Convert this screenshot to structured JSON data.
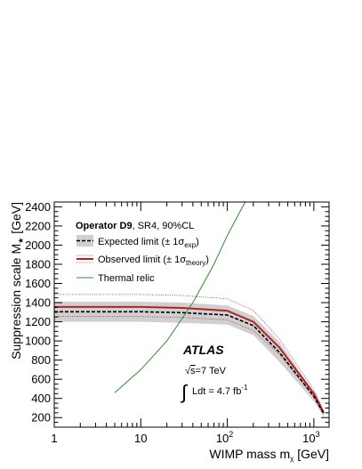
{
  "chart_data": {
    "type": "line",
    "xlabel_main": "WIMP mass m",
    "xlabel_sub": "χ",
    "xlabel_unit": " [GeV]",
    "ylabel_main": "Suppression scale M",
    "ylabel_sub": "★",
    "ylabel_unit": " [GeV]",
    "xscale": "log",
    "xlim": [
      1,
      1500
    ],
    "ylim": [
      100,
      2450
    ],
    "x_ticks": [
      1,
      10,
      100,
      1000
    ],
    "x_tick_labels": [
      {
        "base": "1",
        "exp": ""
      },
      {
        "base": "10",
        "exp": ""
      },
      {
        "base": "10",
        "exp": "2"
      },
      {
        "base": "10",
        "exp": "3"
      }
    ],
    "y_ticks": [
      200,
      400,
      600,
      800,
      1000,
      1200,
      1400,
      1600,
      1800,
      2000,
      2200,
      2400
    ],
    "y_tick_labels": [
      "200",
      "400",
      "600",
      "800",
      "1000",
      "1200",
      "1400",
      "1600",
      "1800",
      "2000",
      "2200",
      "2400"
    ],
    "legend": {
      "title_bold": "Operator D9",
      "title_rest": ", SR4, 90%CL",
      "entries": [
        {
          "main": "Expected limit (± 1σ",
          "sub": "exp",
          "end": ")"
        },
        {
          "main": "Observed limit (± 1σ",
          "sub": "theory",
          "end": ")"
        },
        {
          "main": "Thermal relic",
          "sub": "",
          "end": ""
        }
      ]
    },
    "annotations": {
      "experiment": "ATLAS",
      "energy_pre": "√",
      "energy_s": "s",
      "energy_post": "=7 TeV",
      "lumi_integral": "∫",
      "lumi_text": "Ldt = 4.7 fb",
      "lumi_exp": "-1"
    },
    "x": [
      1,
      10,
      30,
      100,
      200,
      400,
      1000,
      1300
    ],
    "series": [
      {
        "role": "expected",
        "values": [
          1305,
          1305,
          1295,
          1270,
          1160,
          880,
          420,
          240
        ],
        "color": "#000000"
      },
      {
        "role": "expected_band_high",
        "values": [
          1410,
          1410,
          1400,
          1370,
          1260,
          990,
          470,
          270
        ],
        "color": "#d0d0d0"
      },
      {
        "role": "expected_band_low",
        "values": [
          1200,
          1200,
          1190,
          1170,
          1060,
          780,
          370,
          210
        ],
        "color": "#d0d0d0"
      },
      {
        "role": "observed",
        "values": [
          1355,
          1355,
          1345,
          1315,
          1200,
          930,
          450,
          250
        ],
        "color": "#b22222"
      },
      {
        "role": "observed_theory_high",
        "values": [
          1485,
          1485,
          1475,
          1440,
          1320,
          1020,
          490,
          270
        ],
        "color": "#b22222"
      },
      {
        "role": "observed_theory_low",
        "values": [
          1255,
          1255,
          1245,
          1220,
          1110,
          860,
          415,
          230
        ],
        "color": "#b22222"
      }
    ],
    "thermal_relic": {
      "x": [
        5,
        10,
        20,
        40,
        70,
        100,
        150,
        200
      ],
      "y": [
        460,
        700,
        1000,
        1400,
        1800,
        2100,
        2400,
        2600
      ],
      "color": "#2e8b2e"
    }
  }
}
